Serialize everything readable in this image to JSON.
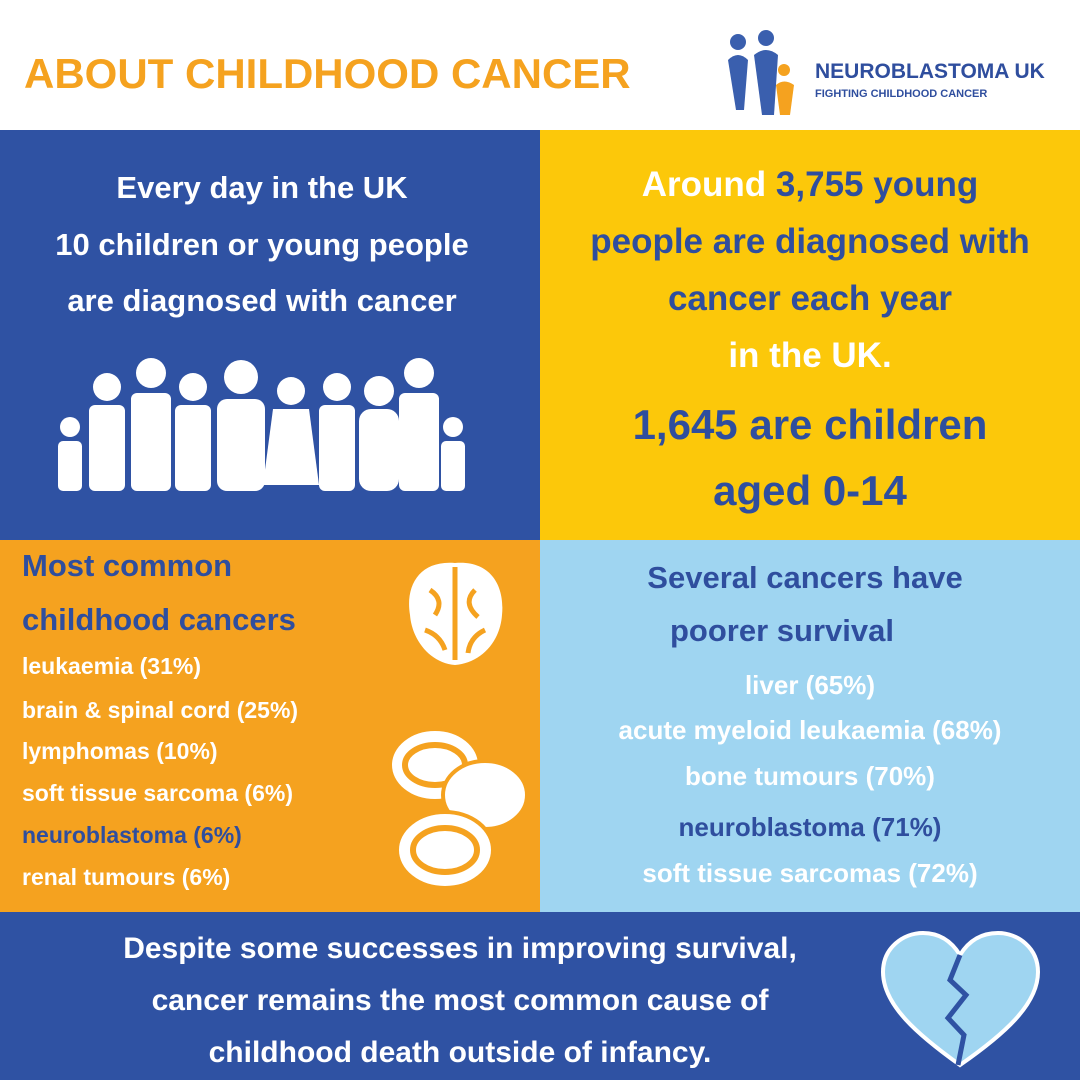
{
  "header": {
    "title": "ABOUT CHILDHOOD CANCER",
    "logo_name": "NEUROBLASTOMA UK",
    "logo_tagline": "FIGHTING CHILDHOOD CANCER"
  },
  "daily": {
    "lines": [
      "Every day in the UK",
      "10 children or young people",
      "are diagnosed with cancer"
    ]
  },
  "yearly": {
    "lead": "Around",
    "lead_highlight": "3,755 young",
    "lines": [
      "people are diagnosed with",
      "cancer each year",
      "in the UK."
    ],
    "stat_lines": [
      "1,645 are children",
      "aged 0-14"
    ]
  },
  "common": {
    "heading": [
      "Most common",
      "childhood cancers"
    ],
    "items": [
      "leukaemia (31%)",
      "brain & spinal cord (25%)",
      "lymphomas (10%)",
      "soft tissue sarcoma (6%)",
      "neuroblastoma (6%)",
      "renal tumours (6%)"
    ]
  },
  "survival": {
    "heading": [
      "Several cancers have",
      "poorer survival"
    ],
    "items": [
      "liver (65%)",
      "acute myeloid leukaemia (68%)",
      "bone tumours (70%)",
      "neuroblastoma (71%)",
      "soft tissue sarcomas (72%)"
    ]
  },
  "footer": {
    "lines": [
      "Despite some successes in improving survival,",
      "cancer remains the most common cause of",
      "childhood death outside of infancy."
    ]
  }
}
